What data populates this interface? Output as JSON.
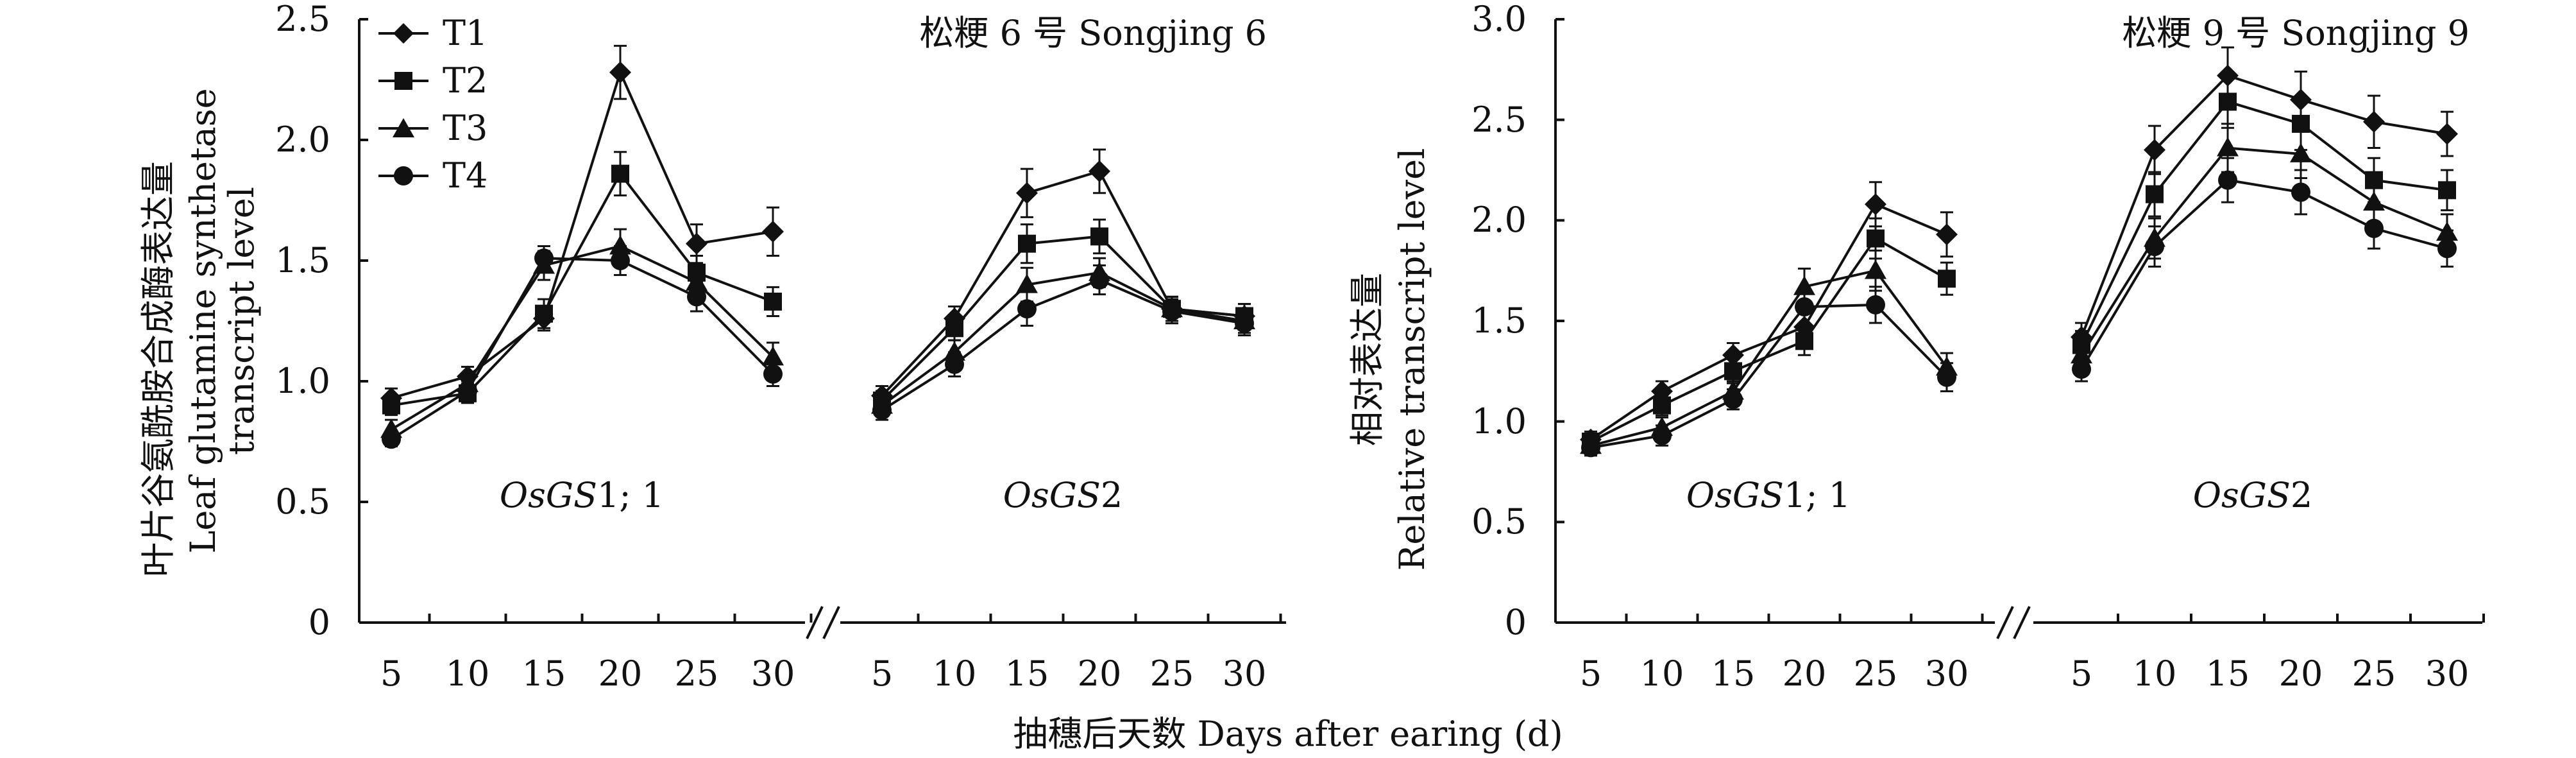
{
  "x_axis_label": "抽穗后天数 Days after earing (d)",
  "legend": [
    "T1",
    "T2",
    "T3",
    "T4"
  ],
  "colors": {
    "ink": "#111111"
  },
  "chart_data": [
    {
      "type": "line",
      "title": "松粳 6 号 Songjing 6",
      "ylabel_cn": "叶片谷氨酰胺合成酶表达量",
      "ylabel_en_1": "Leaf glutamine synthetase",
      "ylabel_en_2": "transcript level",
      "ylim": [
        0,
        2.5
      ],
      "yticks": [
        "0",
        "0.5",
        "1.0",
        "1.5",
        "2.0",
        "2.5"
      ],
      "panels": [
        {
          "gene_italic": "OsGS",
          "gene_suffix": "1; 1",
          "x": [
            5,
            10,
            15,
            20,
            25,
            30
          ],
          "series": [
            {
              "name": "T1",
              "values": [
                0.93,
                1.02,
                1.26,
                2.28,
                1.57,
                1.62
              ],
              "errors": [
                0.04,
                0.04,
                0.05,
                0.11,
                0.08,
                0.1
              ]
            },
            {
              "name": "T2",
              "values": [
                0.9,
                0.95,
                1.28,
                1.86,
                1.45,
                1.33
              ],
              "errors": [
                0.04,
                0.04,
                0.06,
                0.09,
                0.07,
                0.06
              ]
            },
            {
              "name": "T3",
              "values": [
                0.8,
                0.99,
                1.48,
                1.56,
                1.41,
                1.1
              ],
              "errors": [
                0.04,
                0.04,
                0.06,
                0.07,
                0.06,
                0.06
              ]
            },
            {
              "name": "T4",
              "values": [
                0.76,
                0.96,
                1.51,
                1.5,
                1.35,
                1.03
              ],
              "errors": [
                0.03,
                0.04,
                0.05,
                0.06,
                0.06,
                0.05
              ]
            }
          ]
        },
        {
          "gene_italic": "OsGS",
          "gene_suffix": "2",
          "x": [
            5,
            10,
            15,
            20,
            25,
            30
          ],
          "series": [
            {
              "name": "T1",
              "values": [
                0.94,
                1.26,
                1.78,
                1.87,
                1.3,
                1.27
              ],
              "errors": [
                0.04,
                0.05,
                0.1,
                0.09,
                0.05,
                0.05
              ]
            },
            {
              "name": "T2",
              "values": [
                0.92,
                1.22,
                1.57,
                1.6,
                1.3,
                1.27
              ],
              "errors": [
                0.04,
                0.05,
                0.08,
                0.07,
                0.05,
                0.05
              ]
            },
            {
              "name": "T3",
              "values": [
                0.9,
                1.12,
                1.4,
                1.45,
                1.3,
                1.25
              ],
              "errors": [
                0.04,
                0.05,
                0.07,
                0.06,
                0.05,
                0.05
              ]
            },
            {
              "name": "T4",
              "values": [
                0.88,
                1.07,
                1.3,
                1.42,
                1.29,
                1.24
              ],
              "errors": [
                0.04,
                0.05,
                0.07,
                0.06,
                0.05,
                0.05
              ]
            }
          ]
        }
      ]
    },
    {
      "type": "line",
      "title": "松粳 9 号 Songjing 9",
      "ylabel_cn": "相对表达量",
      "ylabel_en": "Relative transcript level",
      "ylim": [
        0,
        3.0
      ],
      "yticks": [
        "0",
        "0.5",
        "1.0",
        "1.5",
        "2.0",
        "2.5",
        "3.0"
      ],
      "panels": [
        {
          "gene_italic": "OsGS",
          "gene_suffix": "1; 1",
          "x": [
            5,
            10,
            15,
            20,
            25,
            30
          ],
          "series": [
            {
              "name": "T1",
              "values": [
                0.91,
                1.15,
                1.33,
                1.47,
                2.08,
                1.93
              ],
              "errors": [
                0.04,
                0.05,
                0.06,
                0.08,
                0.11,
                0.11
              ]
            },
            {
              "name": "T2",
              "values": [
                0.9,
                1.08,
                1.25,
                1.4,
                1.91,
                1.71
              ],
              "errors": [
                0.04,
                0.05,
                0.06,
                0.07,
                0.1,
                0.08
              ]
            },
            {
              "name": "T3",
              "values": [
                0.88,
                0.97,
                1.15,
                1.67,
                1.75,
                1.27
              ],
              "errors": [
                0.04,
                0.05,
                0.05,
                0.09,
                0.1,
                0.07
              ]
            },
            {
              "name": "T4",
              "values": [
                0.87,
                0.93,
                1.11,
                1.57,
                1.58,
                1.22
              ],
              "errors": [
                0.04,
                0.05,
                0.05,
                0.09,
                0.09,
                0.07
              ]
            }
          ]
        },
        {
          "gene_italic": "OsGS",
          "gene_suffix": "2",
          "x": [
            5,
            10,
            15,
            20,
            25,
            30
          ],
          "series": [
            {
              "name": "T1",
              "values": [
                1.42,
                2.35,
                2.72,
                2.6,
                2.49,
                2.43
              ],
              "errors": [
                0.07,
                0.12,
                0.14,
                0.14,
                0.13,
                0.11
              ]
            },
            {
              "name": "T2",
              "values": [
                1.38,
                2.13,
                2.59,
                2.48,
                2.2,
                2.15
              ],
              "errors": [
                0.07,
                0.11,
                0.13,
                0.13,
                0.11,
                0.1
              ]
            },
            {
              "name": "T3",
              "values": [
                1.33,
                1.91,
                2.36,
                2.33,
                2.09,
                1.94
              ],
              "errors": [
                0.07,
                0.1,
                0.12,
                0.12,
                0.1,
                0.09
              ]
            },
            {
              "name": "T4",
              "values": [
                1.26,
                1.87,
                2.2,
                2.14,
                1.96,
                1.86
              ],
              "errors": [
                0.06,
                0.1,
                0.11,
                0.11,
                0.1,
                0.09
              ]
            }
          ]
        }
      ]
    }
  ]
}
